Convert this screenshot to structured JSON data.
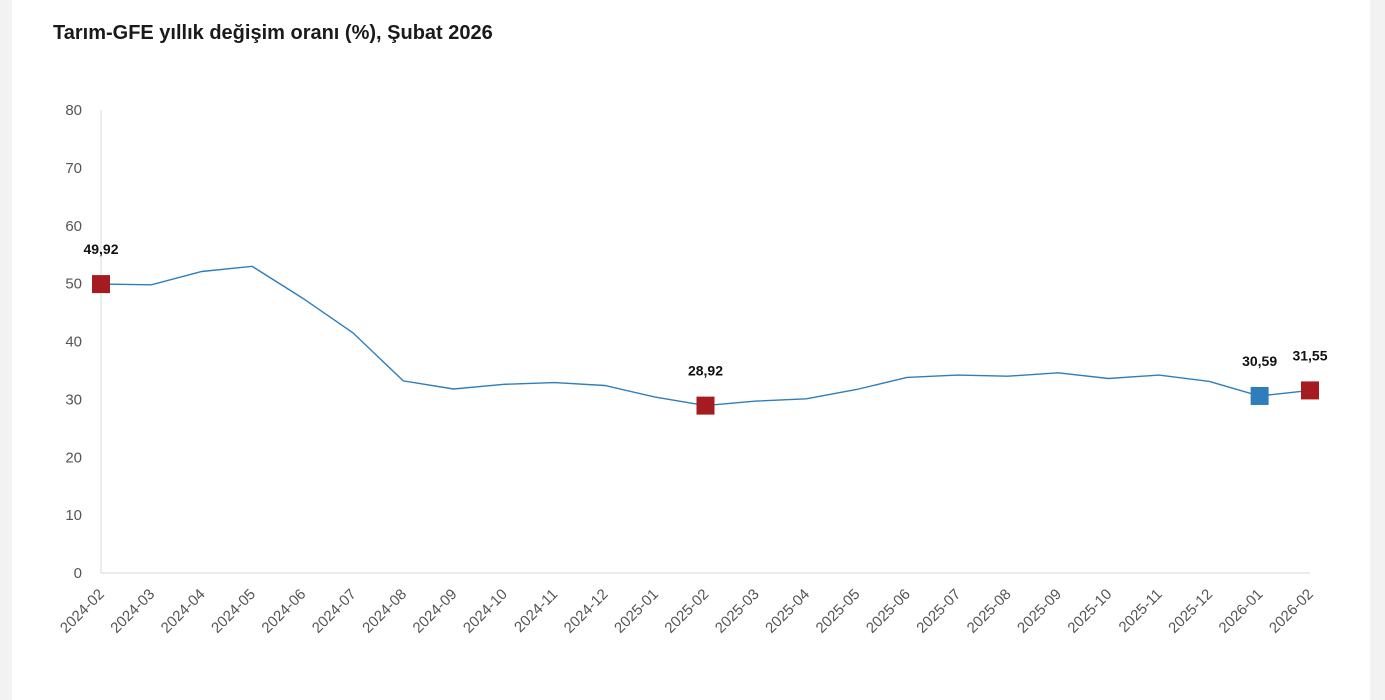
{
  "chart_data": {
    "type": "line",
    "title": "Tarım-GFE yıllık değişim oranı (%), Şubat 2026",
    "xlabel": "",
    "ylabel": "",
    "ylim": [
      0,
      80
    ],
    "yticks": [
      0,
      10,
      20,
      30,
      40,
      50,
      60,
      70,
      80
    ],
    "grid": false,
    "categories": [
      "2024-02",
      "2024-03",
      "2024-04",
      "2024-05",
      "2024-06",
      "2024-07",
      "2024-08",
      "2024-09",
      "2024-10",
      "2024-11",
      "2024-12",
      "2025-01",
      "2025-02",
      "2025-03",
      "2025-04",
      "2025-05",
      "2025-06",
      "2025-07",
      "2025-08",
      "2025-09",
      "2025-10",
      "2025-11",
      "2025-12",
      "2026-01",
      "2026-02"
    ],
    "series": [
      {
        "color": "#2f7ebc",
        "values": [
          49.92,
          49.8,
          52.1,
          53.0,
          47.5,
          41.5,
          33.2,
          31.8,
          32.6,
          32.9,
          32.4,
          30.4,
          28.92,
          29.7,
          30.1,
          31.7,
          33.8,
          34.2,
          34.0,
          34.6,
          33.6,
          34.2,
          33.1,
          30.59,
          31.55
        ]
      }
    ],
    "highlighted_points": [
      {
        "index": 0,
        "label": "49,92",
        "color": "#a61b1f"
      },
      {
        "index": 12,
        "label": "28,92",
        "color": "#a61b1f"
      },
      {
        "index": 23,
        "label": "30,59",
        "color": "#2e7ebc"
      },
      {
        "index": 24,
        "label": "31,55",
        "color": "#a61b1f"
      }
    ]
  }
}
